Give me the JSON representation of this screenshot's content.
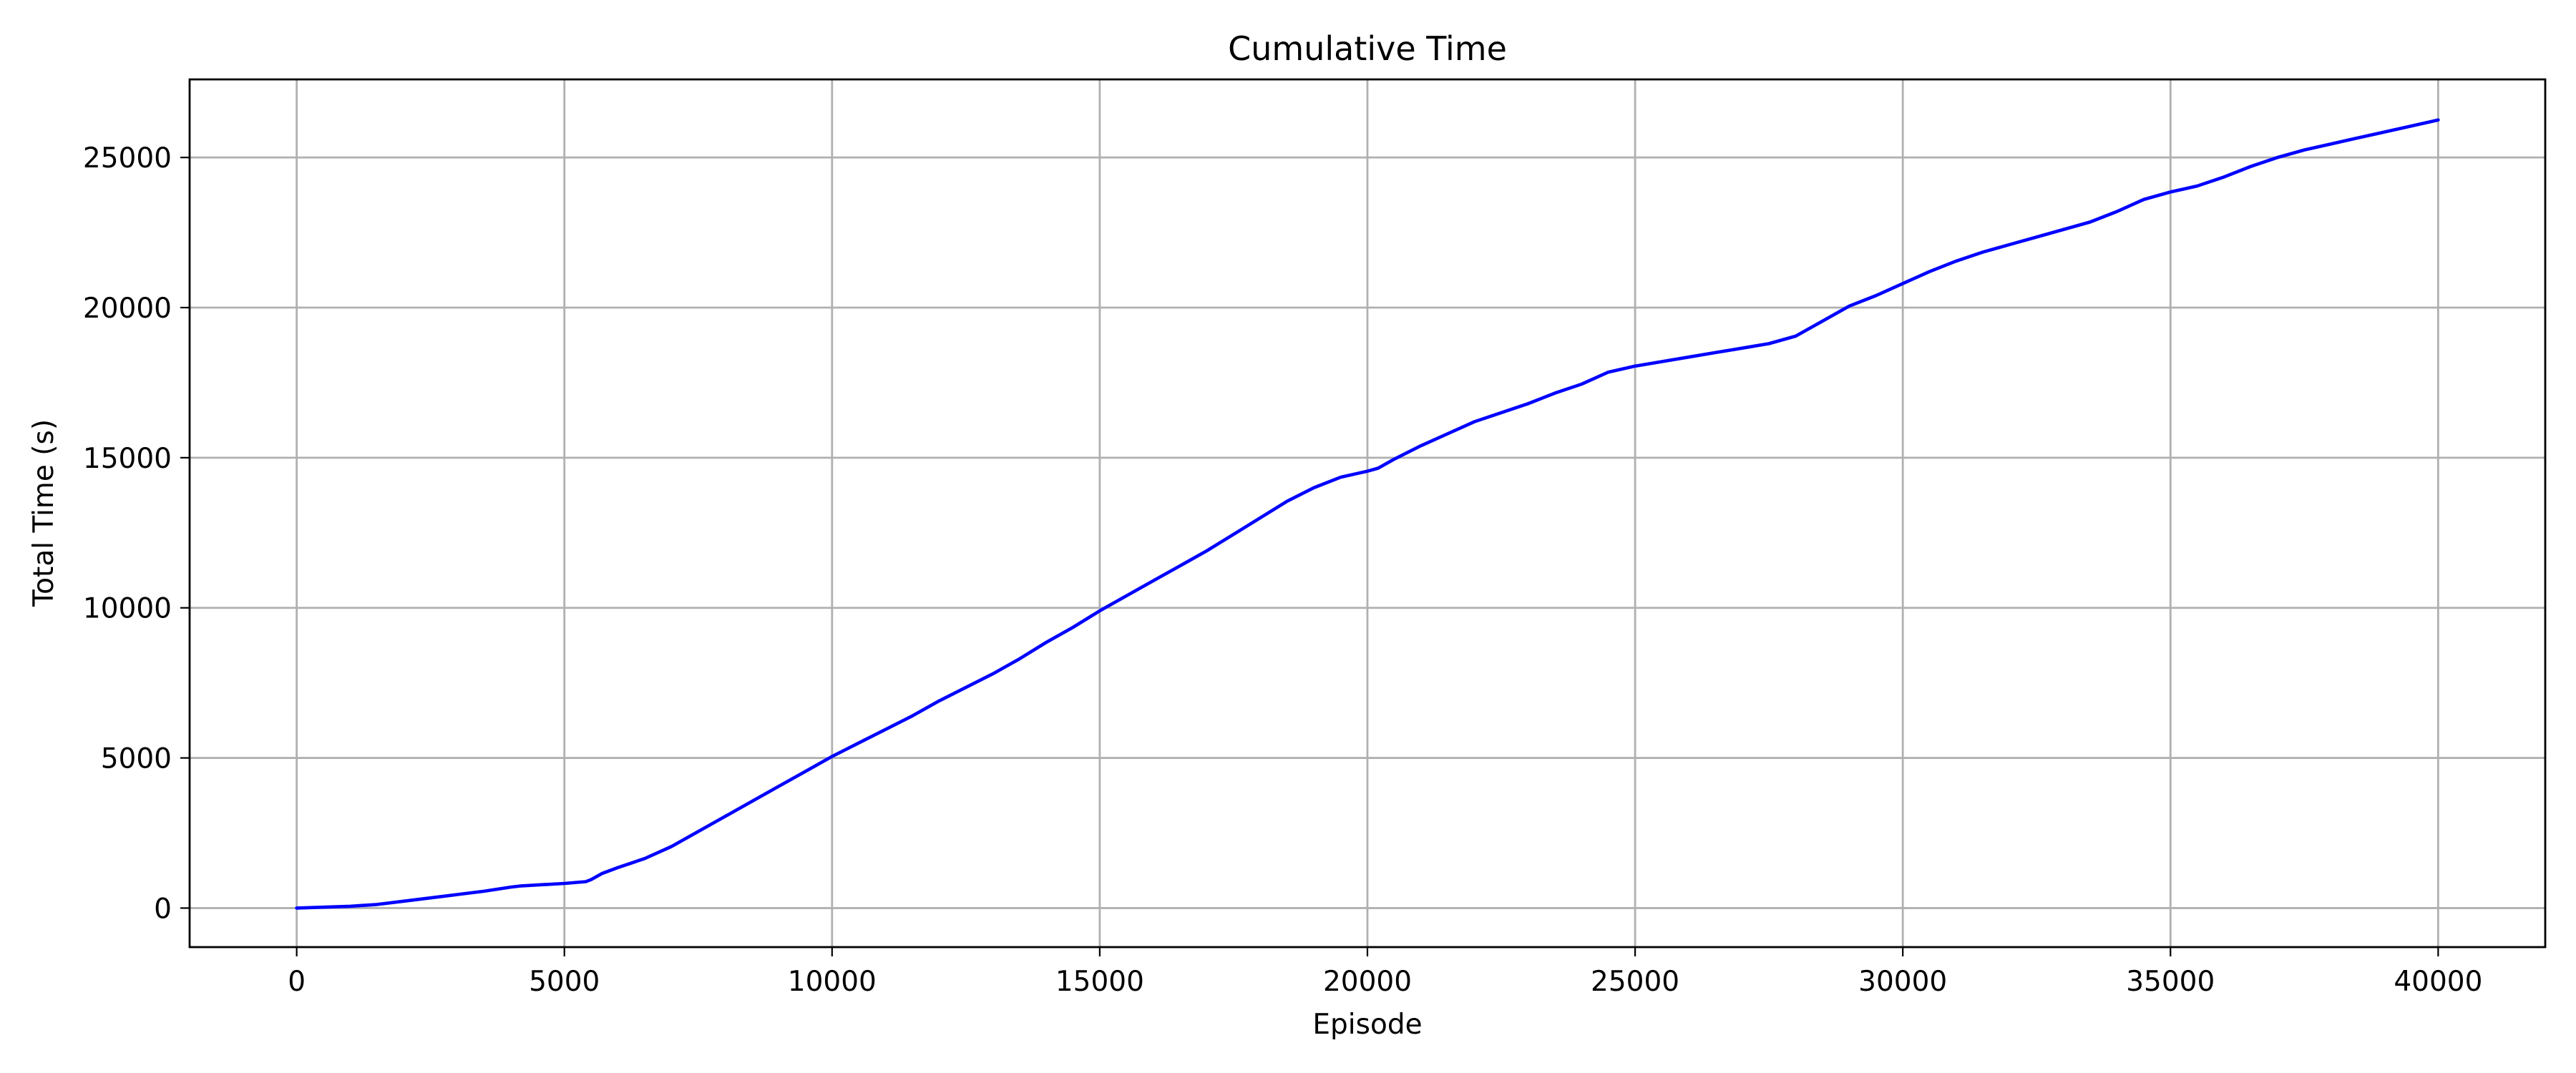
{
  "chart_data": {
    "type": "line",
    "title": "Cumulative Time",
    "xlabel": "Episode",
    "ylabel": "Total Time (s)",
    "xlim": [
      -2000,
      42000
    ],
    "ylim": [
      -1300,
      27600
    ],
    "x_ticks": [
      0,
      5000,
      10000,
      15000,
      20000,
      25000,
      30000,
      35000,
      40000
    ],
    "x_tick_labels": [
      "0",
      "5000",
      "10000",
      "15000",
      "20000",
      "25000",
      "30000",
      "35000",
      "40000"
    ],
    "y_ticks": [
      0,
      5000,
      10000,
      15000,
      20000,
      25000
    ],
    "y_tick_labels": [
      "0",
      "5000",
      "10000",
      "15000",
      "20000",
      "25000"
    ],
    "grid": true,
    "series": [
      {
        "color": "#0000ff",
        "x": [
          0,
          1000,
          1500,
          2000,
          2500,
          3000,
          3500,
          4000,
          4200,
          5000,
          5400,
          5500,
          5700,
          6000,
          6500,
          7000,
          7500,
          8000,
          8500,
          9000,
          9500,
          10000,
          10500,
          11000,
          11500,
          12000,
          12500,
          13000,
          13500,
          14000,
          14500,
          15000,
          15500,
          16000,
          16500,
          17000,
          17500,
          18000,
          18500,
          19000,
          19500,
          20000,
          20200,
          20500,
          21000,
          21500,
          22000,
          22500,
          23000,
          23500,
          24000,
          24500,
          25000,
          25500,
          26000,
          26500,
          27000,
          27500,
          28000,
          28500,
          29000,
          29500,
          30000,
          30500,
          31000,
          31500,
          32000,
          32500,
          33000,
          33500,
          34000,
          34500,
          35000,
          35500,
          36000,
          36500,
          37000,
          37500,
          38000,
          38500,
          39000,
          39500,
          40000
        ],
        "y": [
          0,
          60,
          120,
          230,
          340,
          450,
          560,
          700,
          740,
          820,
          880,
          950,
          1150,
          1350,
          1650,
          2050,
          2550,
          3050,
          3550,
          4050,
          4550,
          5050,
          5500,
          5950,
          6400,
          6900,
          7350,
          7800,
          8300,
          8850,
          9350,
          9900,
          10400,
          10900,
          11400,
          11900,
          12450,
          13000,
          13550,
          14000,
          14350,
          14550,
          14650,
          14950,
          15400,
          15800,
          16200,
          16500,
          16800,
          17150,
          17450,
          17850,
          18050,
          18200,
          18350,
          18500,
          18650,
          18800,
          19050,
          19550,
          20050,
          20400,
          20800,
          21200,
          21550,
          21850,
          22100,
          22350,
          22600,
          22850,
          23200,
          23600,
          23850,
          24050,
          24350,
          24700,
          25000,
          25250,
          25450,
          25650,
          25850,
          26050,
          26250
        ]
      }
    ]
  }
}
